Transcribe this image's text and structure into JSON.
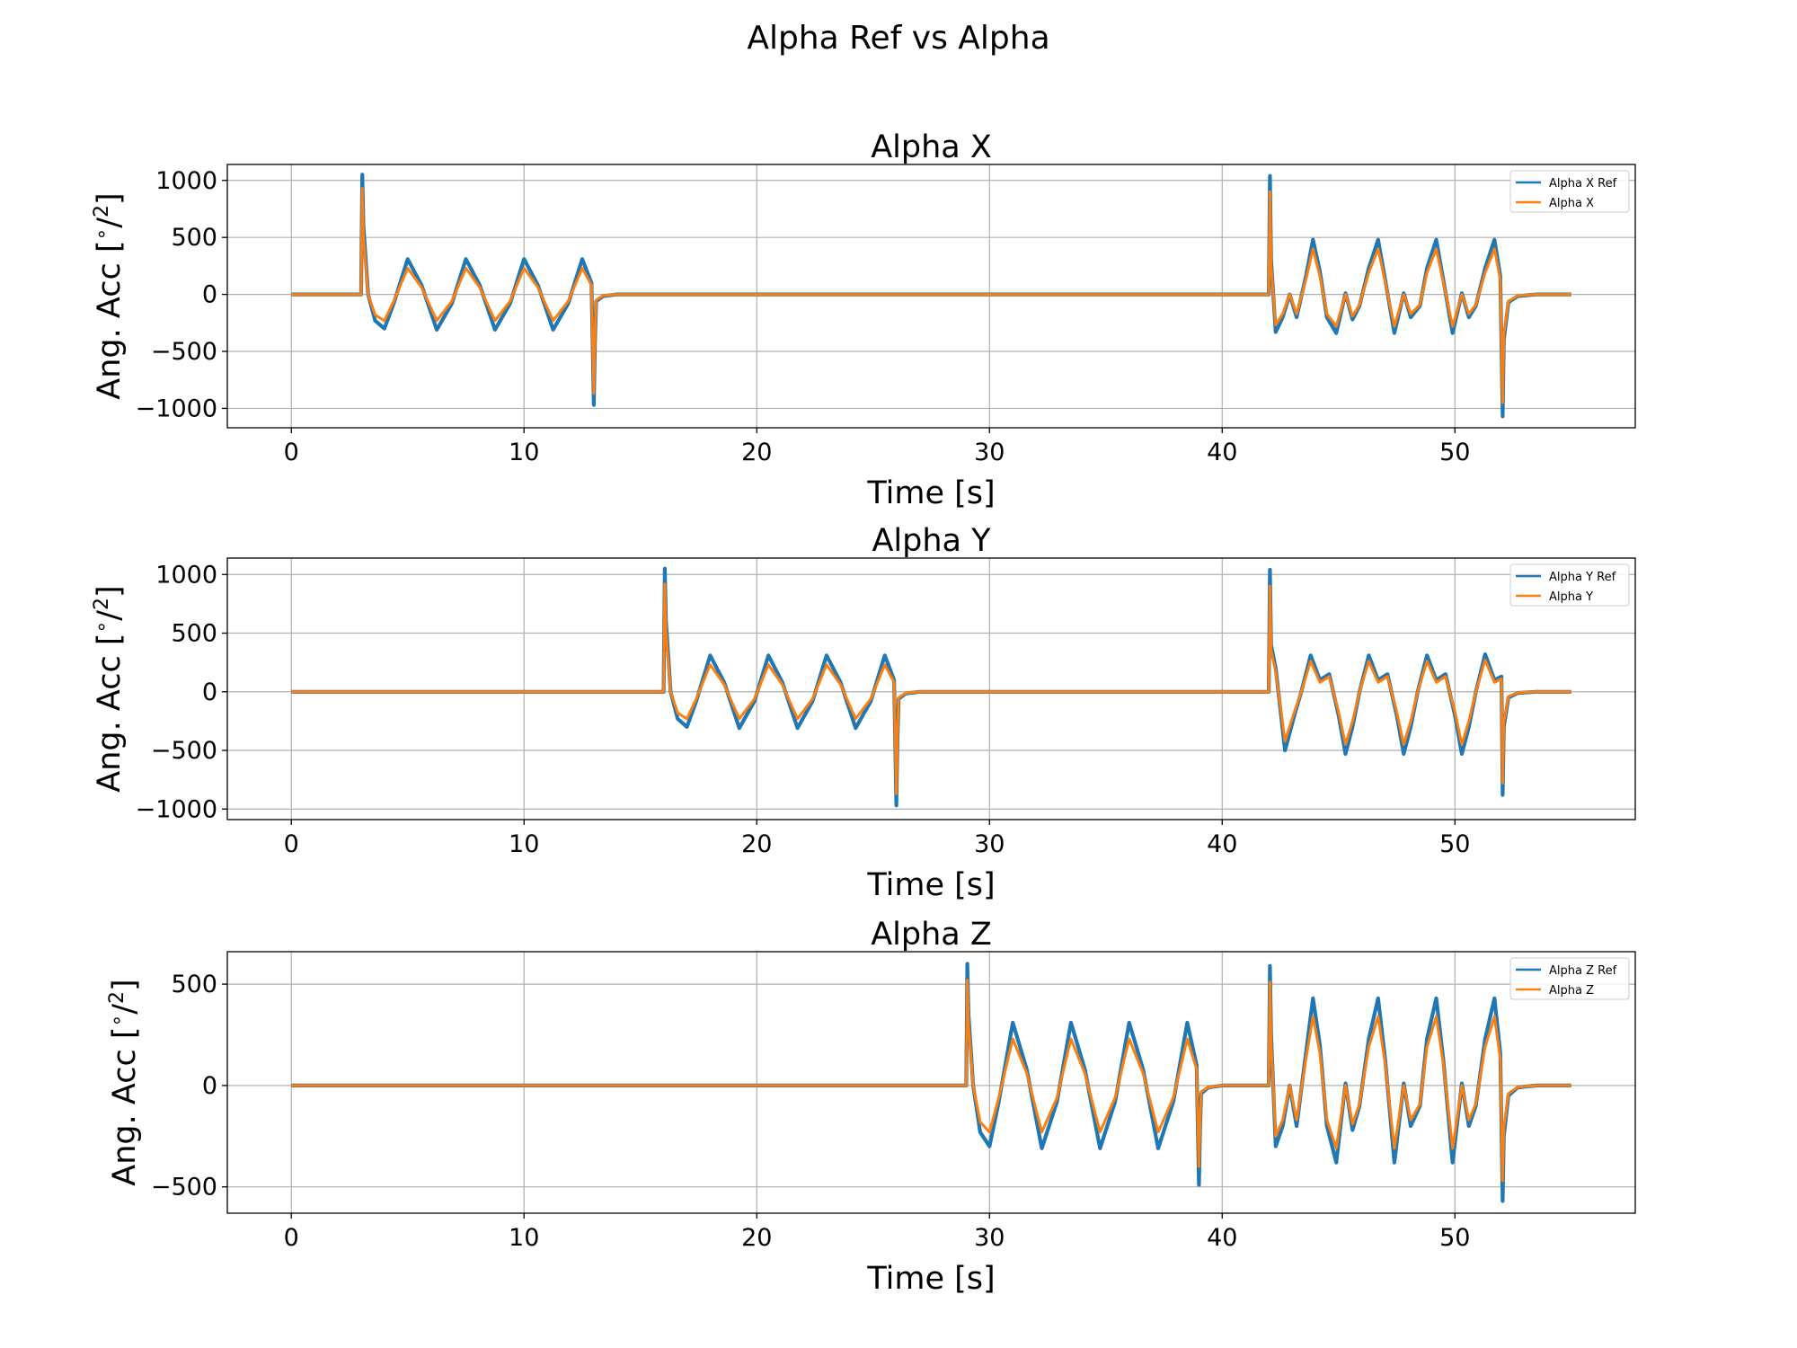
{
  "figure": {
    "title": "Alpha Ref vs Alpha"
  },
  "colors": {
    "ref": "#1f77b4",
    "actual": "#ff7f0e",
    "grid": "#b0b0b0",
    "axis": "#000000"
  },
  "chart_data": [
    {
      "type": "line",
      "title": "Alpha X",
      "xlabel": "Time [s]",
      "ylabel": "Ang. Acc [$^\\circ/^2$]",
      "ylabel_main": "Ang. Acc [",
      "ylabel_sup": "2",
      "ylabel_tail": "]",
      "xlim": [
        -2.75,
        57.75
      ],
      "ylim": [
        -1170,
        1140
      ],
      "xticks": [
        0,
        10,
        20,
        30,
        40,
        50
      ],
      "yticks": [
        -1000,
        -500,
        0,
        500,
        1000
      ],
      "xtick_labels": [
        "0",
        "10",
        "20",
        "30",
        "40",
        "50"
      ],
      "ytick_labels": [
        "−1000",
        "−500",
        "0",
        "500",
        "1000"
      ],
      "grid": true,
      "legend_position": "top-right",
      "series": [
        {
          "name": "Alpha X Ref",
          "x": [
            0,
            3.0,
            3.05,
            3.1,
            3.3,
            3.6,
            4.0,
            4.4,
            5.0,
            5.6,
            6.25,
            6.9,
            7.5,
            8.1,
            8.75,
            9.4,
            10.0,
            10.6,
            11.25,
            11.9,
            12.5,
            12.9,
            13.0,
            13.05,
            13.1,
            13.4,
            14.0,
            42.0,
            42.05,
            42.1,
            42.3,
            42.6,
            42.9,
            43.2,
            43.6,
            43.9,
            44.2,
            44.5,
            44.9,
            45.3,
            45.6,
            45.9,
            46.3,
            46.7,
            47.0,
            47.4,
            47.8,
            48.1,
            48.5,
            48.8,
            49.2,
            49.5,
            49.9,
            50.3,
            50.6,
            50.9,
            51.3,
            51.7,
            51.95,
            52.05,
            52.1,
            52.3,
            52.7,
            53.5,
            55.0
          ],
          "y": [
            0,
            0,
            1050,
            600,
            0,
            -230,
            -300,
            -80,
            310,
            80,
            -310,
            -80,
            310,
            80,
            -310,
            -80,
            310,
            80,
            -310,
            -80,
            310,
            100,
            -970,
            -400,
            -60,
            -15,
            0,
            0,
            1040,
            300,
            -330,
            -200,
            0,
            -200,
            160,
            480,
            200,
            -200,
            -340,
            10,
            -220,
            -100,
            230,
            480,
            130,
            -340,
            10,
            -200,
            -100,
            230,
            480,
            130,
            -340,
            10,
            -200,
            -100,
            230,
            480,
            160,
            -1070,
            -400,
            -70,
            -15,
            0,
            0
          ]
        },
        {
          "name": "Alpha X",
          "x": [
            0,
            3.0,
            3.05,
            3.1,
            3.3,
            3.6,
            4.0,
            4.4,
            5.0,
            5.6,
            6.25,
            6.9,
            7.5,
            8.1,
            8.75,
            9.4,
            10.0,
            10.6,
            11.25,
            11.9,
            12.5,
            12.9,
            13.0,
            13.05,
            13.1,
            13.4,
            14.0,
            42.0,
            42.05,
            42.1,
            42.3,
            42.6,
            42.9,
            43.2,
            43.6,
            43.9,
            44.2,
            44.5,
            44.9,
            45.3,
            45.6,
            45.9,
            46.3,
            46.7,
            47.0,
            47.4,
            47.8,
            48.1,
            48.5,
            48.8,
            49.2,
            49.5,
            49.9,
            50.3,
            50.6,
            50.9,
            51.3,
            51.7,
            51.95,
            52.05,
            52.1,
            52.3,
            52.7,
            53.5,
            55.0
          ],
          "y": [
            0,
            0,
            930,
            500,
            0,
            -180,
            -230,
            -60,
            230,
            60,
            -230,
            -60,
            230,
            60,
            -230,
            -60,
            230,
            60,
            -230,
            -60,
            230,
            80,
            -870,
            -350,
            -50,
            -10,
            0,
            0,
            900,
            250,
            -270,
            -170,
            0,
            -170,
            130,
            400,
            160,
            -170,
            -280,
            0,
            -190,
            -90,
            190,
            400,
            110,
            -280,
            0,
            -170,
            -90,
            190,
            400,
            110,
            -280,
            0,
            -170,
            -90,
            190,
            400,
            130,
            -950,
            -350,
            -60,
            -10,
            0,
            0
          ]
        }
      ]
    },
    {
      "type": "line",
      "title": "Alpha Y",
      "xlabel": "Time [s]",
      "ylabel": "Ang. Acc [$^\\circ/^2$]",
      "ylabel_main": "Ang. Acc [",
      "ylabel_sup": "2",
      "ylabel_tail": "]",
      "xlim": [
        -2.75,
        57.75
      ],
      "ylim": [
        -1090,
        1140
      ],
      "xticks": [
        0,
        10,
        20,
        30,
        40,
        50
      ],
      "yticks": [
        -1000,
        -500,
        0,
        500,
        1000
      ],
      "xtick_labels": [
        "0",
        "10",
        "20",
        "30",
        "40",
        "50"
      ],
      "ytick_labels": [
        "−1000",
        "−500",
        "0",
        "500",
        "1000"
      ],
      "grid": true,
      "legend_position": "top-right",
      "series": [
        {
          "name": "Alpha Y Ref",
          "x": [
            0,
            16.0,
            16.05,
            16.1,
            16.3,
            16.6,
            17.0,
            17.4,
            18.0,
            18.6,
            19.25,
            19.9,
            20.5,
            21.1,
            21.75,
            22.4,
            23.0,
            23.6,
            24.25,
            24.9,
            25.5,
            25.9,
            26.0,
            26.05,
            26.1,
            26.4,
            27.0,
            42.0,
            42.05,
            42.1,
            42.3,
            42.7,
            43.1,
            43.4,
            43.8,
            44.2,
            44.6,
            45.0,
            45.3,
            45.6,
            45.9,
            46.3,
            46.7,
            47.1,
            47.5,
            47.8,
            48.1,
            48.4,
            48.8,
            49.2,
            49.6,
            50.0,
            50.3,
            50.6,
            50.9,
            51.3,
            51.7,
            52.0,
            52.05,
            52.1,
            52.3,
            52.7,
            53.5,
            55.0
          ],
          "y": [
            0,
            0,
            1050,
            600,
            0,
            -230,
            -300,
            -80,
            310,
            80,
            -310,
            -80,
            310,
            80,
            -310,
            -80,
            310,
            80,
            -310,
            -80,
            310,
            100,
            -970,
            -400,
            -60,
            -15,
            0,
            0,
            1040,
            400,
            200,
            -500,
            -200,
            0,
            310,
            100,
            150,
            -200,
            -530,
            -300,
            0,
            310,
            100,
            150,
            -200,
            -530,
            -300,
            0,
            310,
            100,
            150,
            -200,
            -530,
            -300,
            0,
            320,
            100,
            130,
            -880,
            -300,
            -50,
            -10,
            0,
            0
          ]
        },
        {
          "name": "Alpha Y",
          "x": [
            0,
            16.0,
            16.05,
            16.1,
            16.3,
            16.6,
            17.0,
            17.4,
            18.0,
            18.6,
            19.25,
            19.9,
            20.5,
            21.1,
            21.75,
            22.4,
            23.0,
            23.6,
            24.25,
            24.9,
            25.5,
            25.9,
            26.0,
            26.05,
            26.1,
            26.4,
            27.0,
            42.0,
            42.05,
            42.1,
            42.3,
            42.7,
            43.1,
            43.4,
            43.8,
            44.2,
            44.6,
            45.0,
            45.3,
            45.6,
            45.9,
            46.3,
            46.7,
            47.1,
            47.5,
            47.8,
            48.1,
            48.4,
            48.8,
            49.2,
            49.6,
            50.0,
            50.3,
            50.6,
            50.9,
            51.3,
            51.7,
            52.0,
            52.05,
            52.1,
            52.3,
            52.7,
            53.5,
            55.0
          ],
          "y": [
            0,
            0,
            920,
            500,
            0,
            -180,
            -230,
            -60,
            230,
            60,
            -230,
            -60,
            230,
            60,
            -230,
            -60,
            230,
            60,
            -230,
            -60,
            230,
            80,
            -870,
            -350,
            -50,
            -10,
            0,
            0,
            900,
            350,
            170,
            -420,
            -170,
            0,
            260,
            80,
            130,
            -170,
            -450,
            -250,
            0,
            260,
            80,
            130,
            -170,
            -450,
            -250,
            0,
            260,
            80,
            130,
            -170,
            -450,
            -250,
            0,
            270,
            80,
            110,
            -780,
            -260,
            -40,
            -8,
            0,
            0
          ]
        }
      ]
    },
    {
      "type": "line",
      "title": "Alpha Z",
      "xlabel": "Time [s]",
      "ylabel": "Ang. Acc [$^\\circ/^2$]",
      "ylabel_main": "Ang. Acc [",
      "ylabel_sup": "2",
      "ylabel_tail": "]",
      "xlim": [
        -2.75,
        57.75
      ],
      "ylim": [
        -630,
        660
      ],
      "xticks": [
        0,
        10,
        20,
        30,
        40,
        50
      ],
      "yticks": [
        -500,
        0,
        500
      ],
      "xtick_labels": [
        "0",
        "10",
        "20",
        "30",
        "40",
        "50"
      ],
      "ytick_labels": [
        "−500",
        "0",
        "500"
      ],
      "grid": true,
      "legend_position": "top-right",
      "series": [
        {
          "name": "Alpha Z Ref",
          "x": [
            0,
            29.0,
            29.05,
            29.1,
            29.3,
            29.6,
            30.0,
            30.4,
            31.0,
            31.6,
            32.25,
            32.9,
            33.5,
            34.1,
            34.75,
            35.4,
            36.0,
            36.6,
            37.25,
            37.9,
            38.5,
            38.9,
            39.0,
            39.05,
            39.1,
            39.4,
            40.0,
            42.0,
            42.05,
            42.1,
            42.3,
            42.6,
            42.9,
            43.2,
            43.6,
            43.9,
            44.2,
            44.5,
            44.9,
            45.3,
            45.6,
            45.9,
            46.3,
            46.7,
            47.0,
            47.4,
            47.8,
            48.1,
            48.5,
            48.8,
            49.2,
            49.5,
            49.9,
            50.3,
            50.6,
            50.9,
            51.3,
            51.7,
            51.95,
            52.05,
            52.1,
            52.3,
            52.7,
            53.5,
            55.0
          ],
          "y": [
            0,
            0,
            600,
            350,
            0,
            -230,
            -300,
            -80,
            310,
            80,
            -310,
            -80,
            310,
            80,
            -310,
            -80,
            310,
            80,
            -310,
            -80,
            310,
            100,
            -490,
            -200,
            -40,
            -10,
            0,
            0,
            590,
            250,
            -300,
            -200,
            0,
            -200,
            160,
            430,
            200,
            -200,
            -380,
            10,
            -220,
            -100,
            230,
            430,
            130,
            -380,
            10,
            -200,
            -100,
            230,
            430,
            130,
            -380,
            10,
            -200,
            -100,
            230,
            430,
            160,
            -570,
            -250,
            -50,
            -10,
            0,
            0
          ]
        },
        {
          "name": "Alpha Z",
          "x": [
            0,
            29.0,
            29.05,
            29.1,
            29.3,
            29.6,
            30.0,
            30.4,
            31.0,
            31.6,
            32.25,
            32.9,
            33.5,
            34.1,
            34.75,
            35.4,
            36.0,
            36.6,
            37.25,
            37.9,
            38.5,
            38.9,
            39.0,
            39.05,
            39.1,
            39.4,
            40.0,
            42.0,
            42.05,
            42.1,
            42.3,
            42.6,
            42.9,
            43.2,
            43.6,
            43.9,
            44.2,
            44.5,
            44.9,
            45.3,
            45.6,
            45.9,
            46.3,
            46.7,
            47.0,
            47.4,
            47.8,
            48.1,
            48.5,
            48.8,
            49.2,
            49.5,
            49.9,
            50.3,
            50.6,
            50.9,
            51.3,
            51.7,
            51.95,
            52.05,
            52.1,
            52.3,
            52.7,
            53.5,
            55.0
          ],
          "y": [
            0,
            0,
            520,
            300,
            0,
            -180,
            -230,
            -60,
            230,
            60,
            -230,
            -60,
            230,
            60,
            -230,
            -60,
            230,
            60,
            -230,
            -60,
            230,
            80,
            -400,
            -170,
            -30,
            -8,
            0,
            0,
            510,
            210,
            -250,
            -170,
            0,
            -170,
            130,
            340,
            160,
            -170,
            -310,
            0,
            -190,
            -90,
            190,
            340,
            110,
            -310,
            0,
            -170,
            -90,
            190,
            340,
            110,
            -310,
            0,
            -170,
            -90,
            190,
            340,
            130,
            -470,
            -210,
            -40,
            -8,
            0,
            0
          ]
        }
      ]
    }
  ]
}
